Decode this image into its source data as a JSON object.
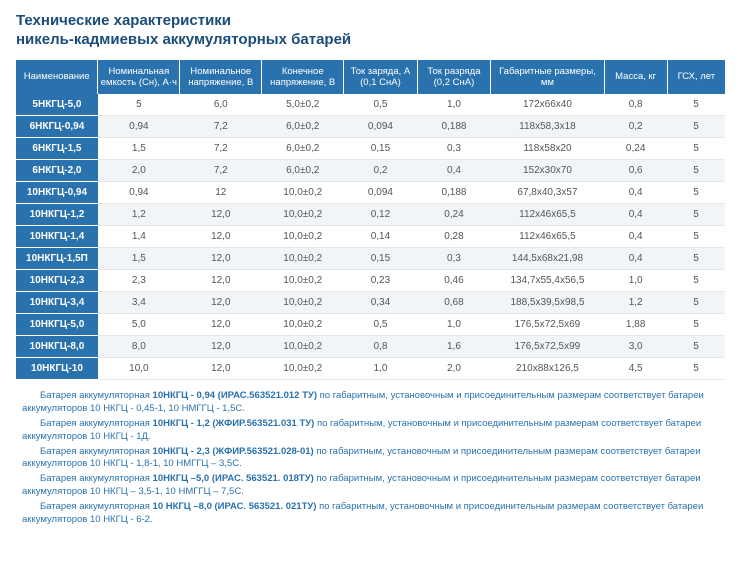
{
  "title_line1": "Технические характеристики",
  "title_line2": "никель-кадмиевых аккумуляторных батарей",
  "columns": [
    "Наименование",
    "Номинальная емкость (Сн), А·ч",
    "Номинальное напряжение, В",
    "Конечное напряжение, В",
    "Ток заряда, А (0,1 СнА)",
    "Ток разряда (0,2 СнА)",
    "Габаритные размеры, мм",
    "Масса, кг",
    "ГСХ, лет"
  ],
  "rows": [
    {
      "name": "5НКГЦ-5,0",
      "cap": "5",
      "nv": "6,0",
      "ev": "5,0±0,2",
      "cc": "0,5",
      "dc": "1,0",
      "dim": "172х66х40",
      "mass": "0,8",
      "life": "5"
    },
    {
      "name": "6НКГЦ-0,94",
      "cap": "0,94",
      "nv": "7,2",
      "ev": "6,0±0,2",
      "cc": "0,094",
      "dc": "0,188",
      "dim": "118х58,3х18",
      "mass": "0,2",
      "life": "5"
    },
    {
      "name": "6НКГЦ-1,5",
      "cap": "1,5",
      "nv": "7,2",
      "ev": "6,0±0,2",
      "cc": "0,15",
      "dc": "0,3",
      "dim": "118х58х20",
      "mass": "0,24",
      "life": "5"
    },
    {
      "name": "6НКГЦ-2,0",
      "cap": "2,0",
      "nv": "7,2",
      "ev": "6,0±0,2",
      "cc": "0,2",
      "dc": "0,4",
      "dim": "152х30х70",
      "mass": "0,6",
      "life": "5"
    },
    {
      "name": "10НКГЦ-0,94",
      "cap": "0,94",
      "nv": "12",
      "ev": "10,0±0,2",
      "cc": "0,094",
      "dc": "0,188",
      "dim": "67,8х40,3х57",
      "mass": "0,4",
      "life": "5"
    },
    {
      "name": "10НКГЦ-1,2",
      "cap": "1,2",
      "nv": "12,0",
      "ev": "10,0±0,2",
      "cc": "0,12",
      "dc": "0,24",
      "dim": "112х46х65,5",
      "mass": "0,4",
      "life": "5"
    },
    {
      "name": "10НКГЦ-1,4",
      "cap": "1,4",
      "nv": "12,0",
      "ev": "10,0±0,2",
      "cc": "0,14",
      "dc": "0,28",
      "dim": "112х46х65,5",
      "mass": "0,4",
      "life": "5"
    },
    {
      "name": "10НКГЦ-1,5П",
      "cap": "1,5",
      "nv": "12,0",
      "ev": "10,0±0,2",
      "cc": "0,15",
      "dc": "0,3",
      "dim": "144,5х68х21,98",
      "mass": "0,4",
      "life": "5"
    },
    {
      "name": "10НКГЦ-2,3",
      "cap": "2,3",
      "nv": "12,0",
      "ev": "10,0±0,2",
      "cc": "0,23",
      "dc": "0,46",
      "dim": "134,7х55,4х56,5",
      "mass": "1,0",
      "life": "5"
    },
    {
      "name": "10НКГЦ-3,4",
      "cap": "3,4",
      "nv": "12,0",
      "ev": "10,0±0,2",
      "cc": "0,34",
      "dc": "0,68",
      "dim": "188,5х39,5х98,5",
      "mass": "1,2",
      "life": "5"
    },
    {
      "name": "10НКГЦ-5,0",
      "cap": "5,0",
      "nv": "12,0",
      "ev": "10,0±0,2",
      "cc": "0,5",
      "dc": "1,0",
      "dim": "176,5х72,5х69",
      "mass": "1,88",
      "life": "5"
    },
    {
      "name": "10НКГЦ-8,0",
      "cap": "8,0",
      "nv": "12,0",
      "ev": "10,0±0,2",
      "cc": "0,8",
      "dc": "1,6",
      "dim": "176,5х72,5х99",
      "mass": "3,0",
      "life": "5"
    },
    {
      "name": "10НКГЦ-10",
      "cap": "10,0",
      "nv": "12,0",
      "ev": "10,0±0,2",
      "cc": "1,0",
      "dc": "2,0",
      "dim": "210х88х126,5",
      "mass": "4,5",
      "life": "5"
    }
  ],
  "notes": [
    {
      "b": "10НКГЦ - 0,94 (ИРАС.563521.012 ТУ)",
      "pre": "Батарея аккумуляторная ",
      "post": " по габаритным, установочным и присоединительным размерам соответствует батареи аккумуляторов 10 НКГЦ - 0,45-1, 10 НМГГЦ - 1,5С."
    },
    {
      "b": "10НКГЦ - 1,2 (ЖФИР.563521.031 ТУ)",
      "pre": "Батарея аккумуляторная ",
      "post": " по габаритным, установочным и присоединительным размерам соответствует батареи аккумуляторов 10 НКГЦ - 1Д."
    },
    {
      "b": "10НКГЦ - 2,3 (ЖФИР.563521.028-01)",
      "pre": "Батарея аккумуляторная ",
      "post": " по габаритным, установочным и присоединительным размерам соответствует батареи аккумуляторов 10 НКГЦ - 1,8-1, 10 НМГГЦ – 3,5С."
    },
    {
      "b": "10НКГЦ –5,0 (ИРАС. 563521. 018ТУ)",
      "pre": "Батарея аккумуляторная ",
      "post": " по габаритным, установочным и присоединительным размерам соответствует батареи аккумуляторов 10 НКГЦ – 3,5-1, 10 НМГГЦ – 7,5С."
    },
    {
      "b": "10 НКГЦ –8,0 (ИРАС. 563521. 021ТУ)",
      "pre": "Батарея аккумуляторная ",
      "post": " по габаритным, установочным и присоединительным размерам соответствует батареи аккумуляторов 10 НКГЦ - 6-2."
    }
  ],
  "style": {
    "header_bg": "#2a72ad",
    "header_fg": "#ffffff",
    "alt_row_bg": "#f2f5f8",
    "title_color": "#1a4d7a",
    "cell_text": "#555555",
    "notes_color": "#2a72ad"
  }
}
